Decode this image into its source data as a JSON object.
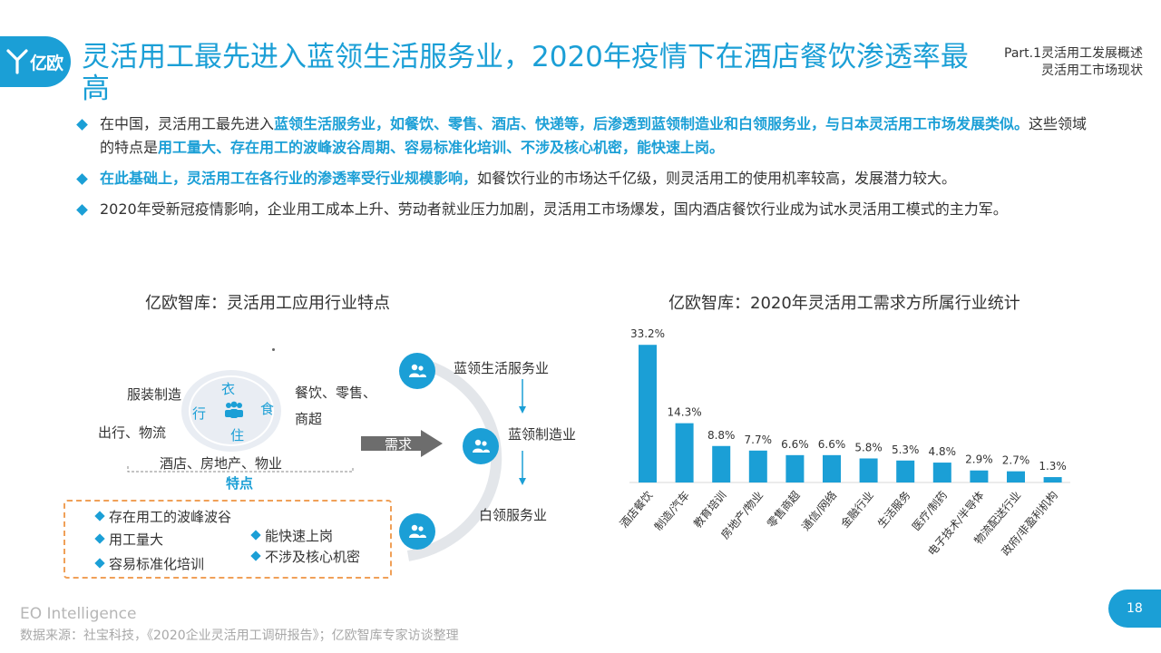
{
  "logo": {
    "text": "亿欧"
  },
  "title": "灵活用工最先进入蓝领生活服务业，2020年疫情下在酒店餐饮渗透率最高",
  "part": {
    "line1": "Part.1灵活用工发展概述",
    "line2": "灵活用工市场现状"
  },
  "bullets": [
    {
      "a": "在中国，灵活用工最先进入",
      "b": "蓝领生活服务业，如餐饮、零售、酒店、快递等，后渗透到蓝领制造业和白领服务业，与日本灵活用工市场发展类似。",
      "c": "这些领域的特点是",
      "d": "用工量大、存在用工的波峰波谷周期、容易标准化培训、不涉及核心机密，能快速上岗。"
    },
    {
      "a": "在此基础上，灵活用工在各行业的渗透率受行业规模影响，",
      "b": "如餐饮行业的市场达千亿级，则灵活用工的使用机率较高，发展潜力较大。"
    },
    {
      "a": "2020年受新冠疫情影响，企业用工成本上升、劳动者就业压力加剧，灵活用工市场爆发，国内酒店餐饮行业成为试水灵活用工模式的主力军。"
    }
  ],
  "left_panel": {
    "title": "亿欧智库：灵活用工应用行业特点",
    "ring": {
      "top": "衣",
      "left": "行",
      "right": "食",
      "bottom": "住"
    },
    "industries": {
      "clothing": "服装制造",
      "food": "餐饮、零售、",
      "food2": "商超",
      "travel": "出行、物流",
      "hotel": "酒店、房地产、物业"
    },
    "features_title": "特点",
    "features": [
      "存在用工的波峰波谷",
      "用工量大",
      "容易标准化培训",
      "能快速上岗",
      "不涉及核心机密"
    ],
    "demand": "需求",
    "flow": [
      "蓝领生活服务业",
      "蓝领制造业",
      "白领服务业"
    ]
  },
  "right_panel": {
    "title": "亿欧智库：2020年灵活用工需求方所属行业统计"
  },
  "chart_data": {
    "type": "bar",
    "title": "亿欧智库：2020年灵活用工需求方所属行业统计",
    "categories": [
      "酒店餐饮",
      "制造/汽车",
      "教育培训",
      "房地产/物业",
      "零售商超",
      "通信/网络",
      "金融行业",
      "生活服务",
      "医疗/制药",
      "电子技术/半导体",
      "物流配送行业",
      "政府/非盈利机构"
    ],
    "values": [
      33.2,
      14.3,
      8.8,
      7.7,
      6.6,
      6.6,
      5.8,
      5.3,
      4.8,
      2.9,
      2.7,
      1.3
    ],
    "labels": [
      "33.2%",
      "14.3%",
      "8.8%",
      "7.7%",
      "6.6%",
      "6.6%",
      "5.8%",
      "5.3%",
      "4.8%",
      "2.9%",
      "2.7%",
      "1.3%"
    ],
    "unit": "%",
    "ylim": [
      0,
      35
    ],
    "color": "#1b9fd6"
  },
  "footer": {
    "eo": "EO Intelligence",
    "source": "数据来源：社宝科技，《2020企业灵活用工调研报告》；亿欧智库专家访谈整理",
    "page": "18"
  }
}
